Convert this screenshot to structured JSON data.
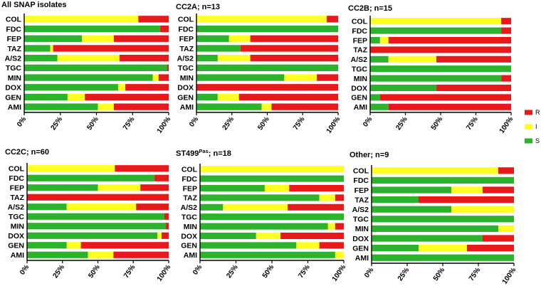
{
  "colors": {
    "R": "#E8191A",
    "I": "#FFFF22",
    "S": "#2DB22D"
  },
  "chart_data": [
    {
      "type": "bar",
      "orientation": "horizontal",
      "stacked": true,
      "title": "All SNAP isolates",
      "categories": [
        "COL",
        "FDC",
        "FEP",
        "TAZ",
        "A/S2",
        "TGC",
        "MIN",
        "DOX",
        "GEN",
        "AMI"
      ],
      "series": [
        {
          "name": "S",
          "values": [
            0,
            94,
            40,
            18,
            23,
            99,
            89,
            65,
            30,
            51
          ]
        },
        {
          "name": "I",
          "values": [
            79,
            0,
            22,
            2,
            43,
            0,
            4,
            5,
            12,
            11
          ]
        },
        {
          "name": "R",
          "values": [
            21,
            6,
            38,
            80,
            34,
            1,
            7,
            30,
            58,
            38
          ]
        }
      ],
      "xticks": [
        "0%",
        "25%",
        "50%",
        "75%",
        "100%"
      ],
      "xlim": [
        0,
        100
      ]
    },
    {
      "type": "bar",
      "orientation": "horizontal",
      "stacked": true,
      "title": "CC2A; n=13",
      "categories": [
        "COL",
        "FDC",
        "FEP",
        "TAZ",
        "A/S2",
        "TGC",
        "MIN",
        "DOX",
        "GEN",
        "AMI"
      ],
      "series": [
        {
          "name": "S",
          "values": [
            0,
            100,
            23,
            31,
            15,
            100,
            62,
            0,
            15,
            46
          ]
        },
        {
          "name": "I",
          "values": [
            92,
            0,
            15,
            0,
            23,
            0,
            23,
            0,
            15,
            7
          ]
        },
        {
          "name": "R",
          "values": [
            8,
            0,
            62,
            69,
            62,
            0,
            15,
            100,
            70,
            47
          ]
        }
      ],
      "xticks": [
        "0%",
        "25%",
        "50%",
        "75%",
        "100%"
      ],
      "xlim": [
        0,
        100
      ]
    },
    {
      "type": "bar",
      "orientation": "horizontal",
      "stacked": true,
      "title": "CC2B; n=15",
      "categories": [
        "COL",
        "FDC",
        "FEP",
        "TAZ",
        "A/S2",
        "TGC",
        "MIN",
        "DOX",
        "GEN",
        "AMI"
      ],
      "series": [
        {
          "name": "S",
          "values": [
            0,
            93,
            7,
            0,
            13,
            100,
            93,
            47,
            7,
            13
          ]
        },
        {
          "name": "I",
          "values": [
            93,
            0,
            6,
            0,
            34,
            0,
            0,
            0,
            0,
            0
          ]
        },
        {
          "name": "R",
          "values": [
            7,
            7,
            87,
            100,
            53,
            0,
            7,
            53,
            93,
            87
          ]
        }
      ],
      "xticks": [
        "0%",
        "25%",
        "50%",
        "75%",
        "100%"
      ],
      "xlim": [
        0,
        100
      ]
    },
    {
      "type": "bar",
      "orientation": "horizontal",
      "stacked": true,
      "title": "CC2C; n=60",
      "categories": [
        "COL",
        "FDC",
        "FEP",
        "TAZ",
        "A/S2",
        "TGC",
        "MIN",
        "DOX",
        "GEN",
        "AMI"
      ],
      "series": [
        {
          "name": "S",
          "values": [
            0,
            90,
            50,
            0,
            28,
            97,
            98,
            92,
            28,
            43
          ]
        },
        {
          "name": "I",
          "values": [
            62,
            0,
            30,
            0,
            49,
            0,
            0,
            3,
            10,
            18
          ]
        },
        {
          "name": "R",
          "values": [
            38,
            10,
            20,
            100,
            23,
            3,
            2,
            5,
            62,
            39
          ]
        }
      ],
      "xticks": [
        "0%",
        "25%",
        "50%",
        "75%",
        "100%"
      ],
      "xlim": [
        0,
        100
      ]
    },
    {
      "type": "bar",
      "orientation": "horizontal",
      "stacked": true,
      "title": "ST499",
      "title_superscript": "Pas",
      "title_suffix": "; n=18",
      "categories": [
        "COL",
        "FDC",
        "FEP",
        "TAZ",
        "A/S2",
        "TGC",
        "MIN",
        "DOX",
        "GEN",
        "AMI"
      ],
      "series": [
        {
          "name": "S",
          "values": [
            0,
            100,
            45,
            83,
            16,
            100,
            89,
            39,
            67,
            94
          ]
        },
        {
          "name": "I",
          "values": [
            100,
            0,
            17,
            11,
            45,
            0,
            5,
            17,
            16,
            6
          ]
        },
        {
          "name": "R",
          "values": [
            0,
            0,
            38,
            6,
            39,
            0,
            6,
            44,
            17,
            0
          ]
        }
      ],
      "xticks": [
        "0%",
        "25%",
        "50%",
        "75%",
        "100%"
      ],
      "xlim": [
        0,
        100
      ]
    },
    {
      "type": "bar",
      "orientation": "horizontal",
      "stacked": true,
      "title": "Other; n=9",
      "categories": [
        "COL",
        "FDC",
        "FEP",
        "TAZ",
        "A/S2",
        "TGC",
        "MIN",
        "DOX",
        "GEN",
        "AMI"
      ],
      "series": [
        {
          "name": "S",
          "values": [
            0,
            100,
            56,
            33,
            56,
            100,
            89,
            78,
            33,
            100
          ]
        },
        {
          "name": "I",
          "values": [
            89,
            0,
            22,
            0,
            44,
            0,
            11,
            0,
            34,
            0
          ]
        },
        {
          "name": "R",
          "values": [
            11,
            0,
            22,
            67,
            0,
            0,
            0,
            22,
            33,
            0
          ]
        }
      ],
      "xticks": [
        "0%",
        "25%",
        "50%",
        "75%",
        "100%"
      ],
      "xlim": [
        0,
        100
      ]
    }
  ],
  "legend": {
    "placement": "right",
    "items": [
      {
        "key": "R",
        "label": "R"
      },
      {
        "key": "I",
        "label": "I"
      },
      {
        "key": "S",
        "label": "S"
      }
    ]
  }
}
